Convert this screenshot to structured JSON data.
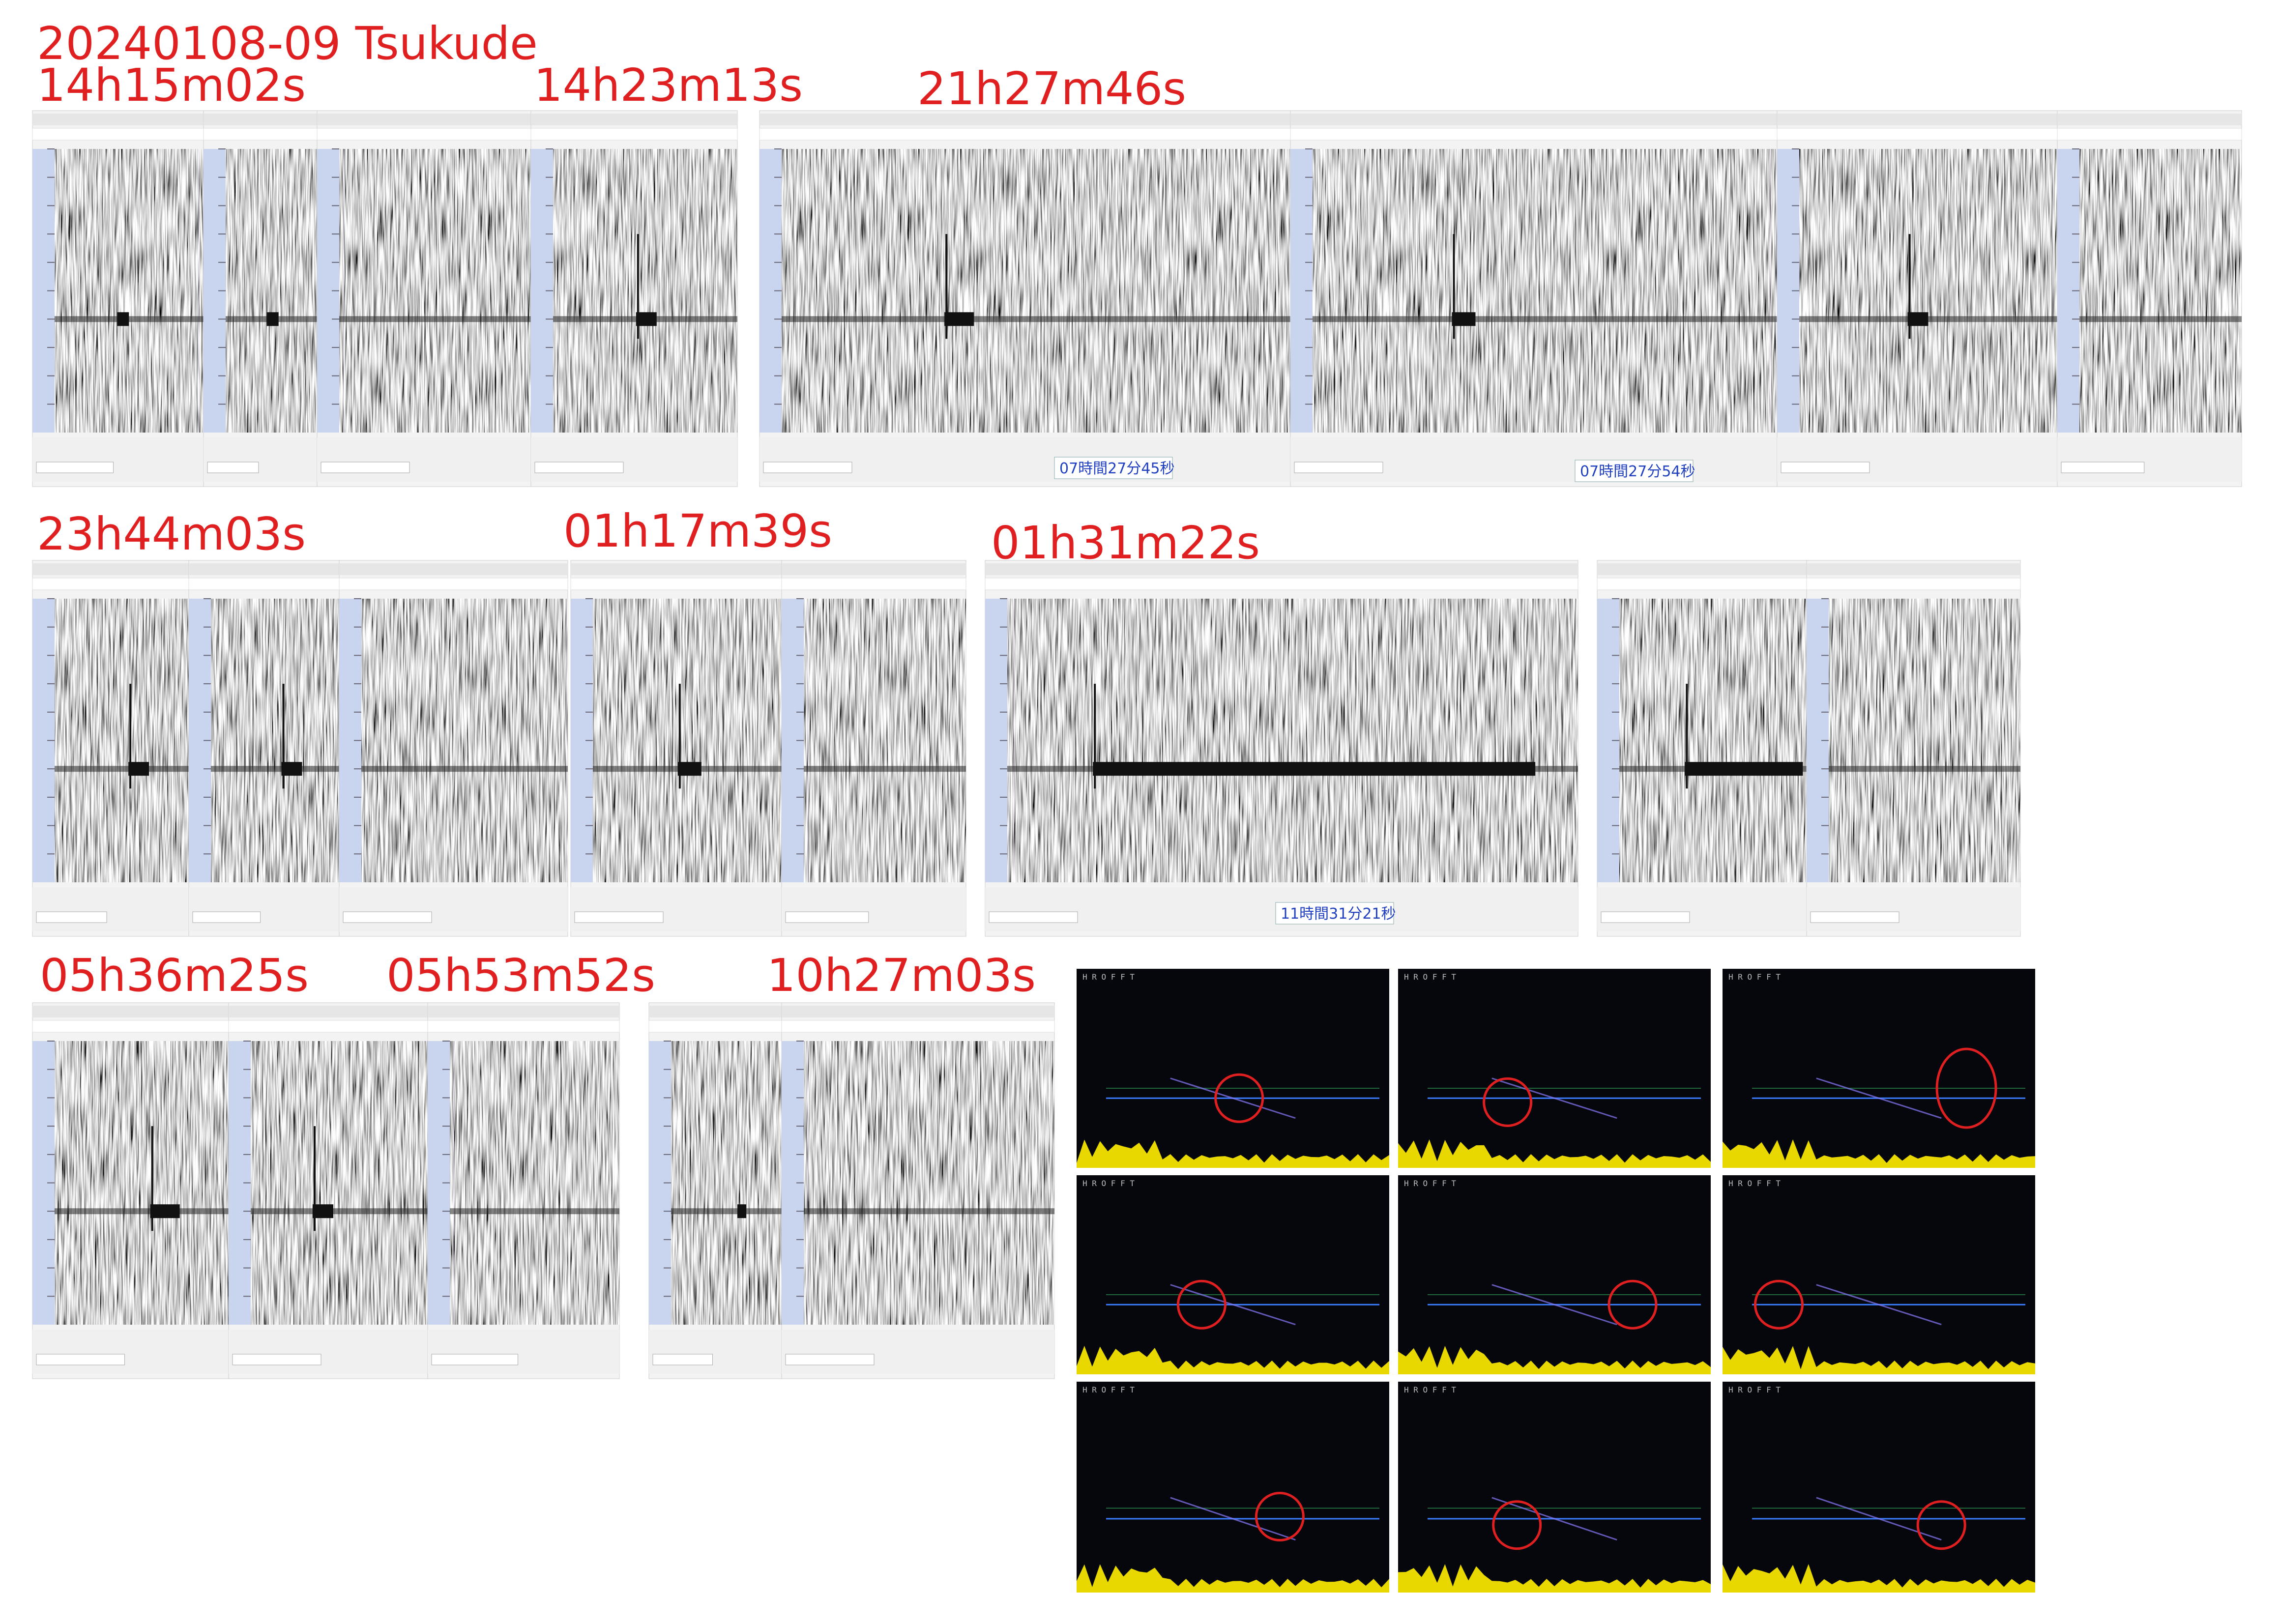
{
  "header": {
    "title": "20240108-09  Tsukude"
  },
  "labels": [
    "14h15m02s",
    "14h23m13s",
    "21h27m46s",
    "23h44m03s",
    "01h17m39s",
    "01h31m22s",
    "05h36m25s",
    "05h53m52s",
    "10h27m03s"
  ],
  "time_boxes": [
    "07時間27分45秒",
    "07時間27分54秒",
    "11時間31分21秒"
  ],
  "hrofft_header": "H R O F F T"
}
